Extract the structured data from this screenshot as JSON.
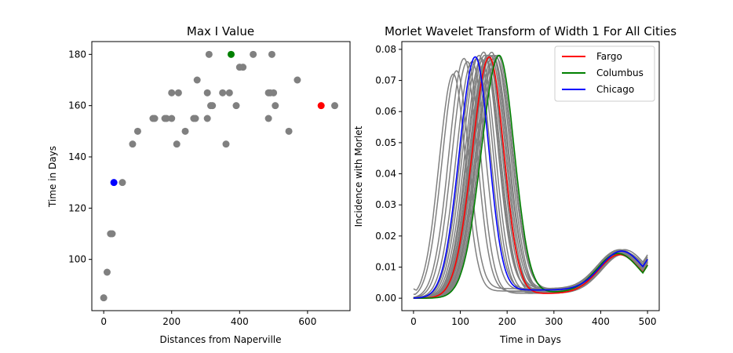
{
  "chart_data": [
    {
      "type": "scatter",
      "title": "Max I Value",
      "xlabel": "Distances from Naperville",
      "ylabel": "Time in Days",
      "xlim": [
        -35,
        725
      ],
      "ylim": [
        80,
        185
      ],
      "xticks": [
        0,
        200,
        400,
        600
      ],
      "yticks": [
        100,
        120,
        140,
        160,
        180
      ],
      "grid": false,
      "colors": {
        "default": "#808080",
        "naperville_nearest": "#0000ff",
        "columbus": "#008000",
        "fargo": "#ff0000"
      },
      "points": [
        {
          "x": 0,
          "y": 85,
          "color": "#808080"
        },
        {
          "x": 10,
          "y": 95,
          "color": "#808080"
        },
        {
          "x": 20,
          "y": 110,
          "color": "#808080"
        },
        {
          "x": 25,
          "y": 110,
          "color": "#808080"
        },
        {
          "x": 30,
          "y": 130,
          "color": "#0000ff"
        },
        {
          "x": 55,
          "y": 130,
          "color": "#808080"
        },
        {
          "x": 85,
          "y": 145,
          "color": "#808080"
        },
        {
          "x": 100,
          "y": 150,
          "color": "#808080"
        },
        {
          "x": 145,
          "y": 155,
          "color": "#808080"
        },
        {
          "x": 150,
          "y": 155,
          "color": "#808080"
        },
        {
          "x": 180,
          "y": 155,
          "color": "#808080"
        },
        {
          "x": 185,
          "y": 155,
          "color": "#808080"
        },
        {
          "x": 200,
          "y": 155,
          "color": "#808080"
        },
        {
          "x": 200,
          "y": 165,
          "color": "#808080"
        },
        {
          "x": 215,
          "y": 145,
          "color": "#808080"
        },
        {
          "x": 220,
          "y": 165,
          "color": "#808080"
        },
        {
          "x": 240,
          "y": 150,
          "color": "#808080"
        },
        {
          "x": 265,
          "y": 155,
          "color": "#808080"
        },
        {
          "x": 270,
          "y": 155,
          "color": "#808080"
        },
        {
          "x": 275,
          "y": 170,
          "color": "#808080"
        },
        {
          "x": 305,
          "y": 155,
          "color": "#808080"
        },
        {
          "x": 305,
          "y": 165,
          "color": "#808080"
        },
        {
          "x": 310,
          "y": 180,
          "color": "#808080"
        },
        {
          "x": 315,
          "y": 160,
          "color": "#808080"
        },
        {
          "x": 320,
          "y": 160,
          "color": "#808080"
        },
        {
          "x": 350,
          "y": 165,
          "color": "#808080"
        },
        {
          "x": 360,
          "y": 145,
          "color": "#808080"
        },
        {
          "x": 370,
          "y": 165,
          "color": "#808080"
        },
        {
          "x": 375,
          "y": 180,
          "color": "#008000"
        },
        {
          "x": 390,
          "y": 160,
          "color": "#808080"
        },
        {
          "x": 400,
          "y": 175,
          "color": "#808080"
        },
        {
          "x": 410,
          "y": 175,
          "color": "#808080"
        },
        {
          "x": 440,
          "y": 180,
          "color": "#808080"
        },
        {
          "x": 485,
          "y": 155,
          "color": "#808080"
        },
        {
          "x": 485,
          "y": 165,
          "color": "#808080"
        },
        {
          "x": 490,
          "y": 165,
          "color": "#808080"
        },
        {
          "x": 495,
          "y": 180,
          "color": "#808080"
        },
        {
          "x": 500,
          "y": 165,
          "color": "#808080"
        },
        {
          "x": 505,
          "y": 160,
          "color": "#808080"
        },
        {
          "x": 545,
          "y": 150,
          "color": "#808080"
        },
        {
          "x": 570,
          "y": 170,
          "color": "#808080"
        },
        {
          "x": 640,
          "y": 160,
          "color": "#ff0000"
        },
        {
          "x": 680,
          "y": 160,
          "color": "#808080"
        }
      ]
    },
    {
      "type": "line",
      "title": "Morlet Wavelet Transform of Width 1 For All Cities",
      "xlabel": "Time in Days",
      "ylabel": "Incidence with Morlet",
      "xlim": [
        -25,
        525
      ],
      "ylim": [
        -0.004,
        0.0825
      ],
      "xticks": [
        0,
        100,
        200,
        300,
        400,
        500
      ],
      "yticks": [
        0.0,
        0.01,
        0.02,
        0.03,
        0.04,
        0.05,
        0.06,
        0.07,
        0.08
      ],
      "ytick_labels": [
        "0.00",
        "0.01",
        "0.02",
        "0.03",
        "0.04",
        "0.05",
        "0.06",
        "0.07",
        "0.08"
      ],
      "grid": false,
      "legend_position": "top-right",
      "x_range": [
        0,
        500
      ],
      "background_series_color": "#808080",
      "background_series": [
        {
          "peak_day": 85,
          "peak_value": 0.072
        },
        {
          "peak_day": 92,
          "peak_value": 0.073
        },
        {
          "peak_day": 108,
          "peak_value": 0.077
        },
        {
          "peak_day": 115,
          "peak_value": 0.076
        },
        {
          "peak_day": 125,
          "peak_value": 0.076
        },
        {
          "peak_day": 135,
          "peak_value": 0.077
        },
        {
          "peak_day": 140,
          "peak_value": 0.078
        },
        {
          "peak_day": 145,
          "peak_value": 0.077
        },
        {
          "peak_day": 150,
          "peak_value": 0.079
        },
        {
          "peak_day": 152,
          "peak_value": 0.078
        },
        {
          "peak_day": 155,
          "peak_value": 0.077
        },
        {
          "peak_day": 158,
          "peak_value": 0.078
        },
        {
          "peak_day": 160,
          "peak_value": 0.078
        },
        {
          "peak_day": 162,
          "peak_value": 0.077
        },
        {
          "peak_day": 165,
          "peak_value": 0.078
        },
        {
          "peak_day": 167,
          "peak_value": 0.079
        },
        {
          "peak_day": 170,
          "peak_value": 0.078
        },
        {
          "peak_day": 172,
          "peak_value": 0.077
        },
        {
          "peak_day": 175,
          "peak_value": 0.078
        },
        {
          "peak_day": 178,
          "peak_value": 0.077
        },
        {
          "peak_day": 180,
          "peak_value": 0.078
        }
      ],
      "series": [
        {
          "name": "Fargo",
          "color": "#ff0000",
          "peak_day": 162,
          "peak_value": 0.0775
        },
        {
          "name": "Columbus",
          "color": "#008000",
          "peak_day": 183,
          "peak_value": 0.078
        },
        {
          "name": "Chicago",
          "color": "#0000ff",
          "peak_day": 132,
          "peak_value": 0.0775
        }
      ],
      "legend": [
        "Fargo",
        "Columbus",
        "Chicago"
      ]
    }
  ]
}
